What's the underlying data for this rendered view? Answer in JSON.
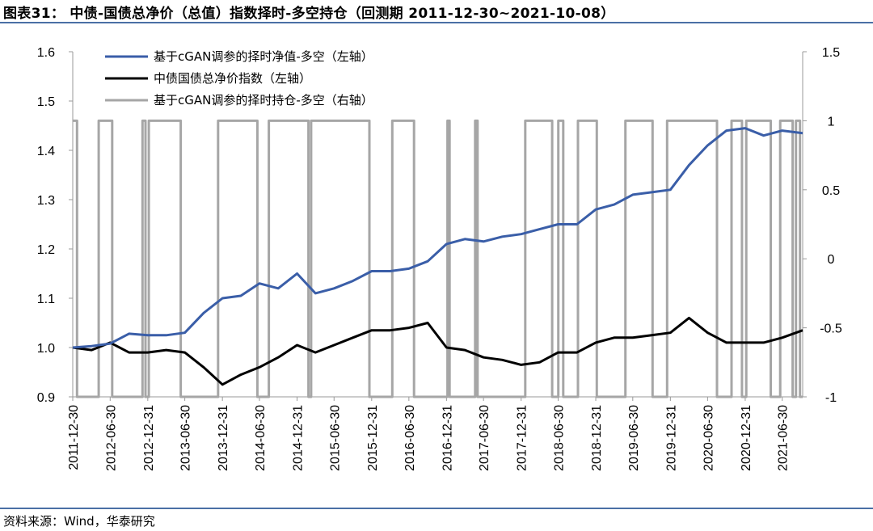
{
  "title": "图表31： 中债-国债总净价（总值）指数择时-多空持仓（回测期 2011-12-30~2021-10-08）",
  "source": "资料来源：Wind，华泰研究",
  "colors": {
    "strategy": "#3a5ea8",
    "index": "#000000",
    "position": "#a6a6a6",
    "rule": "#4a6fa5"
  },
  "chart_data": {
    "type": "line",
    "x_tick_labels": [
      "2011-12-30",
      "2012-06-30",
      "2012-12-31",
      "2013-06-30",
      "2013-12-31",
      "2014-06-30",
      "2014-12-31",
      "2015-06-30",
      "2015-12-31",
      "2016-06-30",
      "2016-12-31",
      "2017-06-30",
      "2017-12-31",
      "2018-06-30",
      "2018-12-31",
      "2019-06-30",
      "2019-12-31",
      "2020-06-30",
      "2020-12-31",
      "2021-06-30"
    ],
    "x_range": [
      "2011-12-30",
      "2021-10-08"
    ],
    "y_left": {
      "range": [
        0.9,
        1.6
      ],
      "ticks": [
        "0.9",
        "1.0",
        "1.1",
        "1.2",
        "1.3",
        "1.4",
        "1.5",
        "1.6"
      ]
    },
    "y_right": {
      "range": [
        -1,
        1.5
      ],
      "ticks": [
        "-1",
        "-0.5",
        "0",
        "0.5",
        "1",
        "1.5"
      ]
    },
    "series": [
      {
        "name": "基于cGAN调参的择时净值-多空（左轴）",
        "axis": "left",
        "color": "#3a5ea8",
        "points": [
          [
            "2011-12-30",
            1.0
          ],
          [
            "2012-03-31",
            1.003
          ],
          [
            "2012-06-30",
            1.008
          ],
          [
            "2012-09-30",
            1.028
          ],
          [
            "2012-12-31",
            1.025
          ],
          [
            "2013-03-31",
            1.025
          ],
          [
            "2013-06-30",
            1.03
          ],
          [
            "2013-09-30",
            1.07
          ],
          [
            "2013-12-31",
            1.1
          ],
          [
            "2014-03-31",
            1.105
          ],
          [
            "2014-06-30",
            1.13
          ],
          [
            "2014-09-30",
            1.12
          ],
          [
            "2014-12-31",
            1.15
          ],
          [
            "2015-03-31",
            1.11
          ],
          [
            "2015-06-30",
            1.12
          ],
          [
            "2015-09-30",
            1.135
          ],
          [
            "2015-12-31",
            1.155
          ],
          [
            "2016-03-31",
            1.155
          ],
          [
            "2016-06-30",
            1.16
          ],
          [
            "2016-09-30",
            1.175
          ],
          [
            "2016-12-31",
            1.21
          ],
          [
            "2017-03-31",
            1.22
          ],
          [
            "2017-06-30",
            1.215
          ],
          [
            "2017-09-30",
            1.225
          ],
          [
            "2017-12-31",
            1.23
          ],
          [
            "2018-03-31",
            1.24
          ],
          [
            "2018-06-30",
            1.25
          ],
          [
            "2018-09-30",
            1.25
          ],
          [
            "2018-12-31",
            1.28
          ],
          [
            "2019-03-31",
            1.29
          ],
          [
            "2019-06-30",
            1.31
          ],
          [
            "2019-09-30",
            1.315
          ],
          [
            "2019-12-31",
            1.32
          ],
          [
            "2020-03-31",
            1.37
          ],
          [
            "2020-06-30",
            1.41
          ],
          [
            "2020-09-30",
            1.44
          ],
          [
            "2020-12-31",
            1.445
          ],
          [
            "2021-03-31",
            1.43
          ],
          [
            "2021-06-30",
            1.44
          ],
          [
            "2021-10-08",
            1.435
          ]
        ]
      },
      {
        "name": "中债国债总净价指数（左轴）",
        "axis": "left",
        "color": "#000000",
        "points": [
          [
            "2011-12-30",
            1.0
          ],
          [
            "2012-03-31",
            0.995
          ],
          [
            "2012-06-30",
            1.01
          ],
          [
            "2012-09-30",
            0.99
          ],
          [
            "2012-12-31",
            0.99
          ],
          [
            "2013-03-31",
            0.995
          ],
          [
            "2013-06-30",
            0.99
          ],
          [
            "2013-09-30",
            0.96
          ],
          [
            "2013-12-31",
            0.925
          ],
          [
            "2014-03-31",
            0.945
          ],
          [
            "2014-06-30",
            0.96
          ],
          [
            "2014-09-30",
            0.98
          ],
          [
            "2014-12-31",
            1.005
          ],
          [
            "2015-03-31",
            0.99
          ],
          [
            "2015-06-30",
            1.005
          ],
          [
            "2015-09-30",
            1.02
          ],
          [
            "2015-12-31",
            1.035
          ],
          [
            "2016-03-31",
            1.035
          ],
          [
            "2016-06-30",
            1.04
          ],
          [
            "2016-09-30",
            1.05
          ],
          [
            "2016-12-31",
            1.0
          ],
          [
            "2017-03-31",
            0.995
          ],
          [
            "2017-06-30",
            0.98
          ],
          [
            "2017-09-30",
            0.975
          ],
          [
            "2017-12-31",
            0.965
          ],
          [
            "2018-03-31",
            0.97
          ],
          [
            "2018-06-30",
            0.99
          ],
          [
            "2018-09-30",
            0.99
          ],
          [
            "2018-12-31",
            1.01
          ],
          [
            "2019-03-31",
            1.02
          ],
          [
            "2019-06-30",
            1.02
          ],
          [
            "2019-09-30",
            1.025
          ],
          [
            "2019-12-31",
            1.03
          ],
          [
            "2020-03-31",
            1.06
          ],
          [
            "2020-06-30",
            1.03
          ],
          [
            "2020-09-30",
            1.01
          ],
          [
            "2020-12-31",
            1.01
          ],
          [
            "2021-03-31",
            1.01
          ],
          [
            "2021-06-30",
            1.02
          ],
          [
            "2021-10-08",
            1.035
          ]
        ]
      },
      {
        "name": "基于cGAN调参的择时持仓-多空（右轴）",
        "axis": "right",
        "color": "#a6a6a6",
        "type": "step",
        "points": [
          [
            "2011-12-30",
            1
          ],
          [
            "2012-01-20",
            -1
          ],
          [
            "2012-05-05",
            1
          ],
          [
            "2012-07-10",
            -1
          ],
          [
            "2012-12-05",
            1
          ],
          [
            "2012-12-20",
            -1
          ],
          [
            "2013-01-05",
            1
          ],
          [
            "2013-06-10",
            -1
          ],
          [
            "2013-12-10",
            1
          ],
          [
            "2014-06-20",
            -1
          ],
          [
            "2014-08-15",
            1
          ],
          [
            "2015-02-25",
            -1
          ],
          [
            "2015-03-10",
            1
          ],
          [
            "2015-12-20",
            -1
          ],
          [
            "2016-04-10",
            1
          ],
          [
            "2016-07-25",
            -1
          ],
          [
            "2017-01-05",
            1
          ],
          [
            "2017-01-15",
            -1
          ],
          [
            "2017-05-20",
            1
          ],
          [
            "2017-06-01",
            -1
          ],
          [
            "2018-01-20",
            1
          ],
          [
            "2018-06-01",
            -1
          ],
          [
            "2018-07-01",
            1
          ],
          [
            "2018-07-25",
            -1
          ],
          [
            "2018-10-05",
            1
          ],
          [
            "2019-01-05",
            -1
          ],
          [
            "2019-05-25",
            1
          ],
          [
            "2019-10-05",
            -1
          ],
          [
            "2019-12-15",
            1
          ],
          [
            "2020-08-15",
            -1
          ],
          [
            "2020-10-25",
            1
          ],
          [
            "2020-12-15",
            -1
          ],
          [
            "2021-01-05",
            1
          ],
          [
            "2021-05-05",
            -1
          ],
          [
            "2021-06-20",
            1
          ],
          [
            "2021-08-20",
            -1
          ],
          [
            "2021-09-05",
            1
          ],
          [
            "2021-09-25",
            -1
          ],
          [
            "2021-10-08",
            -1
          ]
        ]
      }
    ]
  }
}
